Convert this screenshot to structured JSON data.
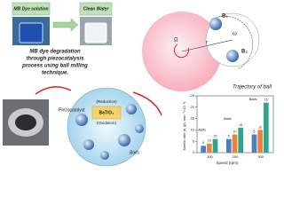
{
  "process": {
    "before_label": "MB Dye solution",
    "after_label": "Clean Water",
    "description": [
      "MB dye degradation",
      "through piezocatalysis",
      "process using ball milling",
      "technique."
    ]
  },
  "trajectory": {
    "ball_1": "B₁",
    "ball_2": "B₂",
    "omega_big": "Ω",
    "radius": "r",
    "omega": "ω",
    "caption": "Trajectory of ball"
  },
  "mechanism": {
    "catalyst": "Piezocatalyst",
    "reduction": "(Reduction)",
    "material": "BaTiO₃",
    "oxidation": "(Oxidation)",
    "balls": "Balls"
  },
  "chart_data": {
    "type": "bar",
    "x_label": "Speed (rpm)",
    "y_label": "Kinetic rate (k, g/L·min⁻¹×10⁻³)",
    "categories": [
      "100",
      "200",
      "300"
    ],
    "series": [
      {
        "name": "5",
        "color": "#4a7fc1",
        "values": [
          3,
          6,
          8
        ]
      },
      {
        "name": "10",
        "color": "#e8833a",
        "values": [
          4,
          8,
          10
        ]
      },
      {
        "name": "15",
        "color": "#2fa58f",
        "values": [
          6,
          11,
          22
        ]
      }
    ],
    "annotations": [
      "Balls",
      "Balls",
      "Balls"
    ],
    "ylim": [
      0,
      25
    ],
    "yticks": [
      0,
      5,
      10,
      15,
      20,
      25
    ]
  }
}
